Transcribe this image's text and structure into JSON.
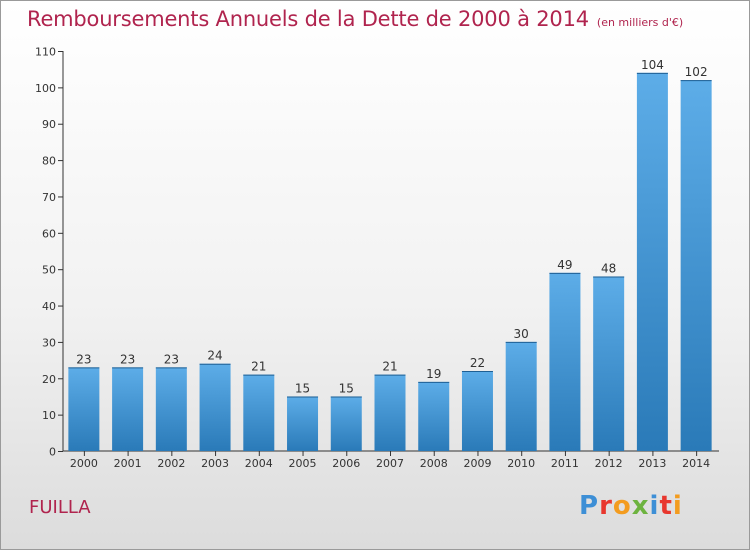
{
  "title": "Remboursements Annuels de la Dette de 2000 à 2014",
  "subtitle": "(en milliers d'€)",
  "commune": "FUILLA",
  "logo": {
    "letters": [
      "P",
      "r",
      "o",
      "x",
      "i",
      "t",
      "i"
    ],
    "colors": [
      "#3d8fd6",
      "#e8372e",
      "#f39c1f",
      "#6db33f",
      "#3d8fd6",
      "#e8372e",
      "#f39c1f"
    ]
  },
  "colors": {
    "bar_light": "#5dade8",
    "bar_dark": "#2a7ab8",
    "accent": "#b0244e"
  },
  "chart_data": {
    "type": "bar",
    "categories": [
      "2000",
      "2001",
      "2002",
      "2003",
      "2004",
      "2005",
      "2006",
      "2007",
      "2008",
      "2009",
      "2010",
      "2011",
      "2012",
      "2013",
      "2014"
    ],
    "values": [
      23,
      23,
      23,
      24,
      21,
      15,
      15,
      21,
      19,
      22,
      30,
      49,
      48,
      104,
      102
    ],
    "title": "Remboursements Annuels de la Dette de 2000 à 2014",
    "subtitle": "(en milliers d'€)",
    "xlabel": "",
    "ylabel": "",
    "ylim": [
      0,
      110
    ],
    "yticks": [
      0,
      10,
      20,
      30,
      40,
      50,
      60,
      70,
      80,
      90,
      100,
      110
    ],
    "grid": false,
    "data_labels": true
  }
}
